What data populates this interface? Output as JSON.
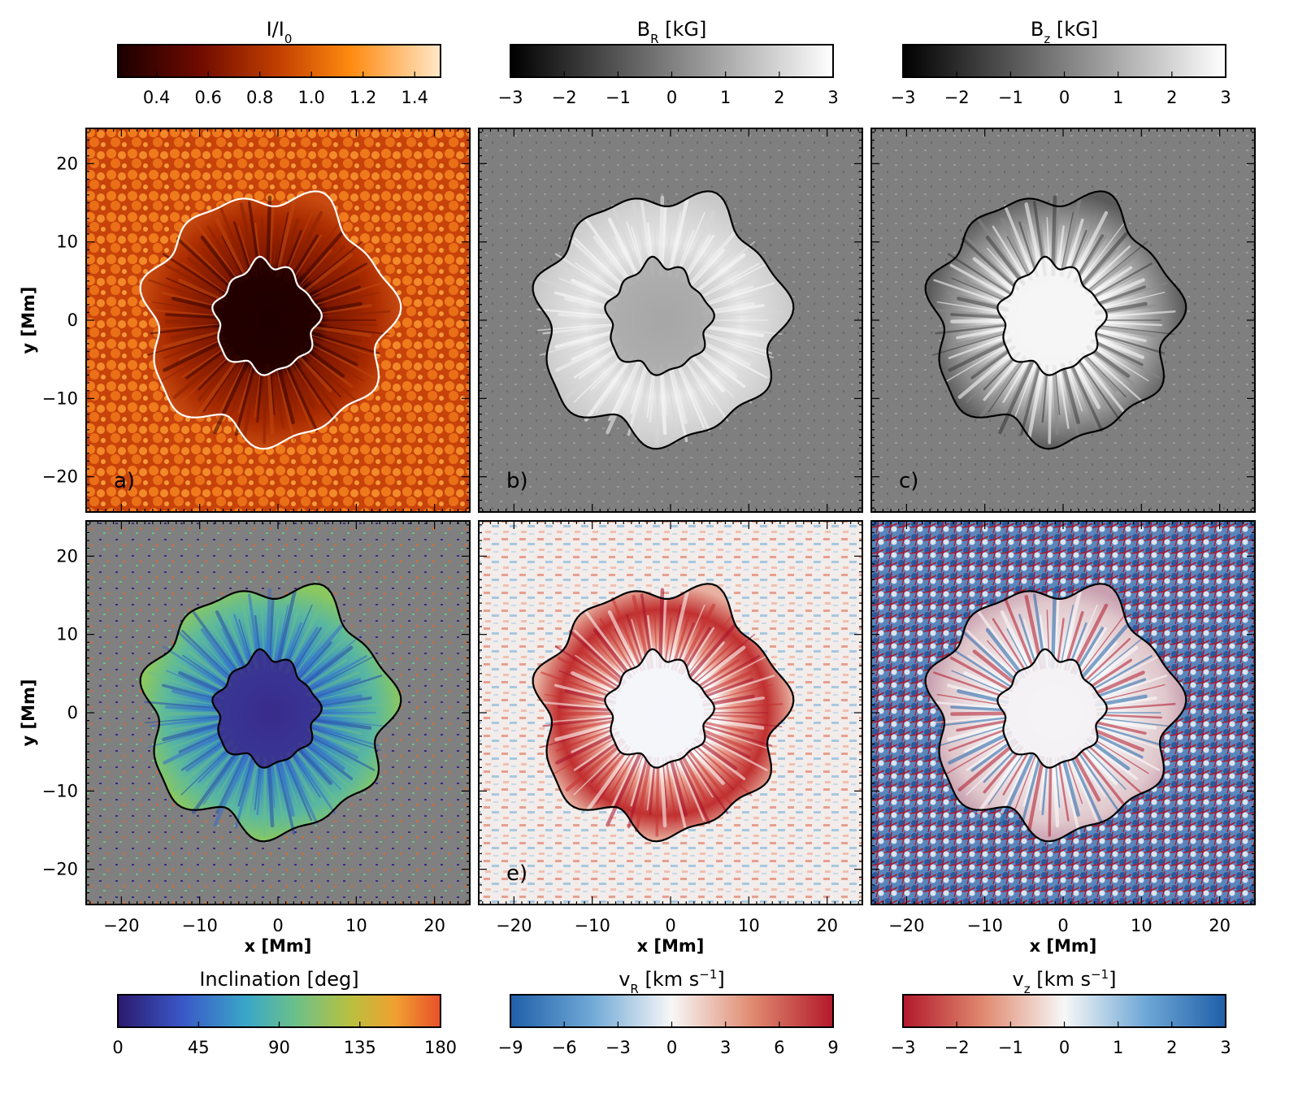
{
  "figure": {
    "colorbars_top": [
      {
        "title_main": "I/I",
        "title_sub": "0",
        "title_rest": "",
        "ticks": [
          "0.4",
          "0.6",
          "0.8",
          "1.0",
          "1.2",
          "1.4"
        ],
        "cmap": "heat"
      },
      {
        "title_main": "B",
        "title_sub": "R",
        "title_rest": " [kG]",
        "ticks": [
          "−3",
          "−2",
          "−1",
          "0",
          "1",
          "2",
          "3"
        ],
        "cmap": "gray"
      },
      {
        "title_main": "B",
        "title_sub": "z",
        "title_rest": " [kG]",
        "ticks": [
          "−3",
          "−2",
          "−1",
          "0",
          "1",
          "2",
          "3"
        ],
        "cmap": "gray"
      }
    ],
    "colorbars_bottom": [
      {
        "title_main": "Inclination [deg]",
        "title_sub": "",
        "title_rest": "",
        "ticks": [
          "0",
          "45",
          "90",
          "135",
          "180"
        ],
        "cmap": "viridis"
      },
      {
        "title_main": "v",
        "title_sub": "R",
        "title_rest": " [km s",
        "title_sup": "−1",
        "title_end": "]",
        "ticks": [
          "−9",
          "−6",
          "−3",
          "0",
          "3",
          "6",
          "9"
        ],
        "cmap": "rdbu"
      },
      {
        "title_main": "v",
        "title_sub": "z",
        "title_rest": " [km s",
        "title_sup": "−1",
        "title_end": "]",
        "ticks": [
          "−3",
          "−2",
          "−1",
          "0",
          "1",
          "2",
          "3"
        ],
        "cmap": "rdbu_rev"
      }
    ],
    "colors": {
      "heat_dark": "#2a0000",
      "heat_mid": "#c2410a",
      "heat_light": "#ffd7a8",
      "field_gray": "#7f7f7f",
      "incl_bg": "#808080",
      "red": "#b2182b",
      "blue": "#2166ac",
      "white": "#f7f7f7",
      "contour_white": "#ffffff",
      "contour_black": "#000000"
    }
  },
  "chart_data": {
    "type": "heatmap",
    "description_panels": 6,
    "x_axis": {
      "label": "x [Mm]",
      "ticks": [
        -20,
        -10,
        0,
        10,
        20
      ],
      "tick_labels": [
        "−20",
        "−10",
        "0",
        "10",
        "20"
      ],
      "range": [
        -24.5,
        24.5
      ]
    },
    "y_axis": {
      "label": "y [Mm]",
      "ticks": [
        -20,
        -10,
        0,
        10,
        20
      ],
      "tick_labels": [
        "−20",
        "−10",
        "0",
        "10",
        "20"
      ],
      "range": [
        -24.5,
        24.5
      ]
    },
    "panels": [
      {
        "label": "a)",
        "quantity": "I/I0",
        "contour_color": "white"
      },
      {
        "label": "b)",
        "quantity": "B_R [kG]",
        "contour_color": "black"
      },
      {
        "label": "c)",
        "quantity": "B_z [kG]",
        "contour_color": "black"
      },
      {
        "label": "",
        "quantity": "Inclination [deg]",
        "contour_color": "black"
      },
      {
        "label": "e)",
        "quantity": "v_R [km s-1]",
        "contour_color": "black"
      },
      {
        "label": "",
        "quantity": "v_z [km s-1]",
        "contour_color": "black"
      }
    ],
    "umbra_radius_mm": 6.5,
    "penumbra_radius_mm": 15.5,
    "colorbar_ranges": {
      "I/I0": [
        0.25,
        1.5
      ],
      "B_R": [
        -3,
        3
      ],
      "B_z": [
        -3,
        3
      ],
      "Inclination": [
        0,
        180
      ],
      "v_R": [
        -9,
        9
      ],
      "v_z": [
        -3,
        3
      ]
    }
  }
}
